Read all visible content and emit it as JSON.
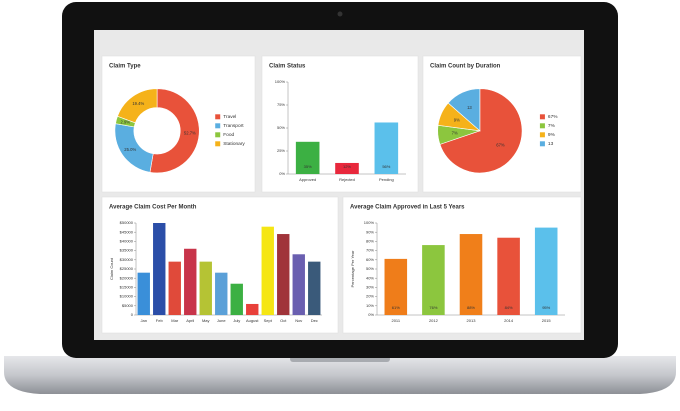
{
  "chart_data": [
    {
      "type": "donut",
      "title": "Claim Type",
      "categories": [
        "Travel",
        "Transport",
        "Food",
        "Stationary"
      ],
      "values": [
        52.7,
        25.0,
        2.9,
        19.4
      ],
      "value_labels": [
        "52.7%",
        "25.0%",
        "2.9%",
        "19.4%"
      ],
      "colors": [
        "#e8523a",
        "#5aaee0",
        "#8cc63e",
        "#f5b21a"
      ]
    },
    {
      "type": "bar",
      "title": "Claim Status",
      "categories": [
        "Approved",
        "Rejected",
        "Pending"
      ],
      "values": [
        35,
        12,
        56
      ],
      "value_labels": [
        "35%",
        "12%",
        "56%"
      ],
      "colors": [
        "#3cb043",
        "#e8283c",
        "#5bc0eb"
      ],
      "ylim": [
        0,
        100
      ],
      "yticks": [
        {
          "value": 0,
          "label": "0%"
        },
        {
          "value": 25,
          "label": "25%"
        },
        {
          "value": 50,
          "label": "50%"
        },
        {
          "value": 75,
          "label": "75%"
        },
        {
          "value": 100,
          "label": "100%"
        }
      ]
    },
    {
      "type": "pie",
      "title": "Claim Count by Duration",
      "categories": [
        "67%",
        "7%",
        "9%",
        "13"
      ],
      "values": [
        67,
        7,
        9,
        13
      ],
      "value_labels": [
        "67%",
        "7%",
        "9%",
        "13"
      ],
      "colors": [
        "#e8523a",
        "#8cc63e",
        "#f5b21a",
        "#5aaee0"
      ]
    },
    {
      "type": "bar",
      "title": "Average Claim Cost Per Month",
      "ylabel": "Claim Count",
      "categories": [
        "Jan",
        "Feb",
        "Mar",
        "April",
        "May",
        "June",
        "July",
        "August",
        "Sept",
        "Oct",
        "Nov",
        "Dec"
      ],
      "values": [
        23000,
        50000,
        29000,
        36000,
        29000,
        23000,
        17000,
        6000,
        48000,
        44000,
        33000,
        29000
      ],
      "colors": [
        "#3a8fd9",
        "#2b4ea8",
        "#e04a3a",
        "#c8344a",
        "#b5c334",
        "#5aa0d8",
        "#3cb043",
        "#e8403a",
        "#f5e614",
        "#a0343a",
        "#6a5fb0",
        "#3a5a7a"
      ],
      "ylim": [
        0,
        50000
      ],
      "yticks": [
        0,
        {
          "value": 5000,
          "label": "$5000"
        },
        {
          "value": 10000,
          "label": "$10000"
        },
        {
          "value": 15000,
          "label": "$15000"
        },
        {
          "value": 20000,
          "label": "$20000"
        },
        {
          "value": 25000,
          "label": "$25000"
        },
        {
          "value": 30000,
          "label": "$30000"
        },
        {
          "value": 35000,
          "label": "$35000"
        },
        {
          "value": 40000,
          "label": "$40000"
        },
        {
          "value": 45000,
          "label": "$45000"
        },
        {
          "value": 50000,
          "label": "$50000"
        }
      ]
    },
    {
      "type": "bar",
      "title": "Average Claim Approved in Last 5 Years",
      "ylabel": "Percentage Per Year",
      "categories": [
        "2011",
        "2012",
        "2013",
        "2014",
        "2015"
      ],
      "values": [
        61,
        76,
        88,
        84,
        95
      ],
      "value_labels": [
        "61%",
        "76%",
        "88%",
        "84%",
        "95%"
      ],
      "colors": [
        "#ef7d1a",
        "#8cc63e",
        "#f07f1a",
        "#e8523a",
        "#5bc0eb"
      ],
      "ylim": [
        0,
        100
      ],
      "yticks": [
        {
          "value": 0,
          "label": "0%"
        },
        {
          "value": 10,
          "label": "10%"
        },
        {
          "value": 20,
          "label": "20%"
        },
        {
          "value": 30,
          "label": "30%"
        },
        {
          "value": 40,
          "label": "40%"
        },
        {
          "value": 50,
          "label": "50%"
        },
        {
          "value": 60,
          "label": "60%"
        },
        {
          "value": 70,
          "label": "70%"
        },
        {
          "value": 80,
          "label": "80%"
        },
        {
          "value": 90,
          "label": "90%"
        },
        {
          "value": 100,
          "label": "100%"
        }
      ]
    }
  ]
}
